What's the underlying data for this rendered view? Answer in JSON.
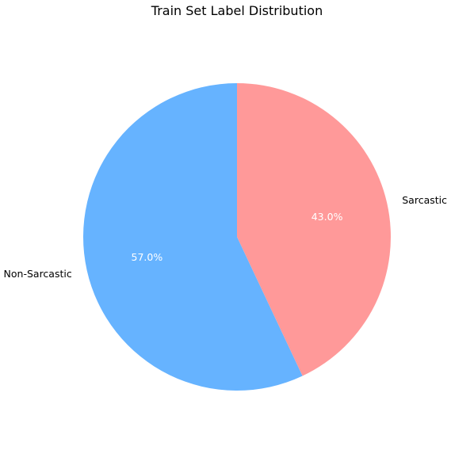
{
  "chart_data": {
    "type": "pie",
    "title": "Train Set Label Distribution",
    "slices": [
      {
        "label": "Sarcastic",
        "value": 43.0,
        "pct_label": "43.0%",
        "color": "#ff9999"
      },
      {
        "label": "Non-Sarcastic",
        "value": 57.0,
        "pct_label": "57.0%",
        "color": "#66b3ff"
      }
    ],
    "start_angle_deg": 90,
    "direction": "clockwise",
    "legend": "none"
  }
}
